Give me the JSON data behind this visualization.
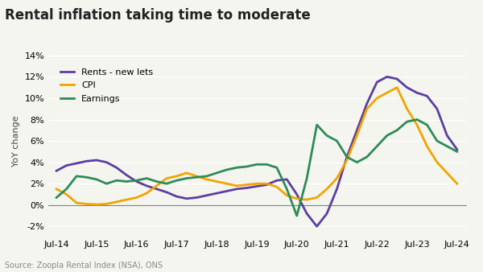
{
  "title": "Rental inflation taking time to moderate",
  "ylabel": "YoY change",
  "source": "Source: Zoopla Rental Index (NSA), ONS",
  "background_color": "#f5f5f0",
  "plot_bg_color": "#f5f5f0",
  "colors": {
    "rents": "#5b3fa0",
    "cpi": "#f0a500",
    "earnings": "#2e8b57"
  },
  "legend": [
    "Rents - new lets",
    "CPI",
    "Earnings"
  ],
  "ylim": [
    -3,
    15
  ],
  "yticks": [
    -2,
    0,
    2,
    4,
    6,
    8,
    10,
    12,
    14
  ],
  "rents": {
    "dates": [
      2014.5,
      2014.75,
      2015.0,
      2015.25,
      2015.5,
      2015.75,
      2016.0,
      2016.25,
      2016.5,
      2016.75,
      2017.0,
      2017.25,
      2017.5,
      2017.75,
      2018.0,
      2018.25,
      2018.5,
      2018.75,
      2019.0,
      2019.25,
      2019.5,
      2019.75,
      2020.0,
      2020.25,
      2020.5,
      2020.75,
      2021.0,
      2021.25,
      2021.5,
      2021.75,
      2022.0,
      2022.25,
      2022.5,
      2022.75,
      2023.0,
      2023.25,
      2023.5,
      2023.75,
      2024.0,
      2024.25,
      2024.5
    ],
    "values": [
      3.2,
      3.7,
      3.9,
      4.1,
      4.2,
      4.0,
      3.5,
      2.8,
      2.2,
      1.8,
      1.5,
      1.2,
      0.8,
      0.6,
      0.7,
      0.9,
      1.1,
      1.3,
      1.5,
      1.6,
      1.75,
      1.9,
      2.3,
      2.4,
      1.0,
      -0.8,
      -2.0,
      -0.8,
      1.5,
      4.5,
      7.0,
      9.5,
      11.5,
      12.0,
      11.8,
      11.0,
      10.5,
      10.2,
      9.0,
      6.5,
      5.2
    ]
  },
  "cpi": {
    "dates": [
      2014.5,
      2014.75,
      2015.0,
      2015.25,
      2015.5,
      2015.75,
      2016.0,
      2016.25,
      2016.5,
      2016.75,
      2017.0,
      2017.25,
      2017.5,
      2017.75,
      2018.0,
      2018.25,
      2018.5,
      2018.75,
      2019.0,
      2019.25,
      2019.5,
      2019.75,
      2020.0,
      2020.25,
      2020.5,
      2020.75,
      2021.0,
      2021.25,
      2021.5,
      2021.75,
      2022.0,
      2022.25,
      2022.5,
      2022.75,
      2023.0,
      2023.25,
      2023.5,
      2023.75,
      2024.0,
      2024.25,
      2024.5
    ],
    "values": [
      1.5,
      1.0,
      0.2,
      0.1,
      0.05,
      0.1,
      0.3,
      0.5,
      0.7,
      1.1,
      1.8,
      2.5,
      2.7,
      3.0,
      2.7,
      2.4,
      2.2,
      2.0,
      1.8,
      1.9,
      2.0,
      2.0,
      1.7,
      0.9,
      0.6,
      0.5,
      0.7,
      1.5,
      2.5,
      4.2,
      6.5,
      9.0,
      10.0,
      10.5,
      11.0,
      9.0,
      7.5,
      5.5,
      4.0,
      3.0,
      2.0
    ]
  },
  "earnings": {
    "dates": [
      2014.5,
      2014.75,
      2015.0,
      2015.25,
      2015.5,
      2015.75,
      2016.0,
      2016.25,
      2016.5,
      2016.75,
      2017.0,
      2017.25,
      2017.5,
      2017.75,
      2018.0,
      2018.25,
      2018.5,
      2018.75,
      2019.0,
      2019.25,
      2019.5,
      2019.75,
      2020.0,
      2020.25,
      2020.5,
      2020.75,
      2021.0,
      2021.25,
      2021.5,
      2021.75,
      2022.0,
      2022.25,
      2022.5,
      2022.75,
      2023.0,
      2023.25,
      2023.5,
      2023.75,
      2024.0,
      2024.25,
      2024.5
    ],
    "values": [
      0.7,
      1.5,
      2.7,
      2.6,
      2.4,
      2.0,
      2.3,
      2.2,
      2.3,
      2.5,
      2.2,
      2.0,
      2.3,
      2.5,
      2.6,
      2.7,
      3.0,
      3.3,
      3.5,
      3.6,
      3.8,
      3.8,
      3.5,
      1.5,
      -1.0,
      2.5,
      7.5,
      6.5,
      6.0,
      4.5,
      4.0,
      4.5,
      5.5,
      6.5,
      7.0,
      7.8,
      8.0,
      7.5,
      6.0,
      5.5,
      5.0
    ]
  }
}
